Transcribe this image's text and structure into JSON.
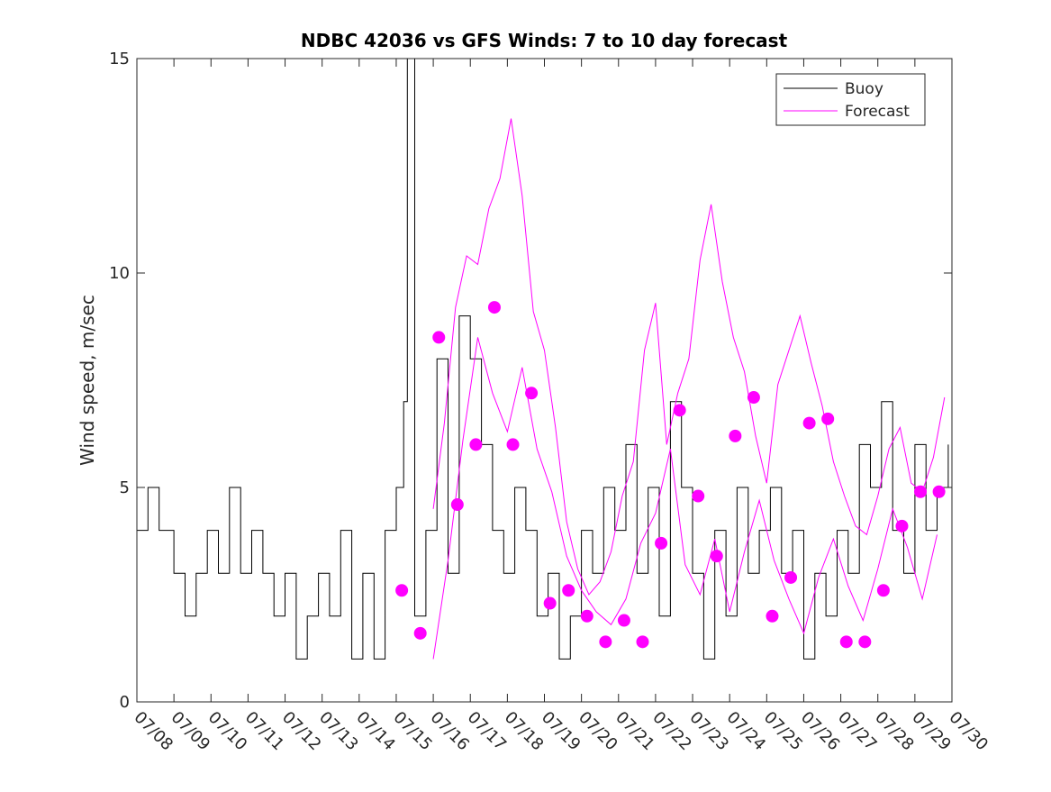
{
  "chart_data": {
    "type": "line",
    "title": "NDBC 42036 vs GFS Winds: 7 to 10 day forecast",
    "xlabel": "",
    "ylabel": "Wind speed, m/sec",
    "x_ticks": [
      "07/08",
      "07/09",
      "07/10",
      "07/11",
      "07/12",
      "07/13",
      "07/14",
      "07/15",
      "07/16",
      "07/17",
      "07/18",
      "07/19",
      "07/20",
      "07/21",
      "07/22",
      "07/23",
      "07/24",
      "07/25",
      "07/26",
      "07/27",
      "07/28",
      "07/29",
      "07/30"
    ],
    "xlim_days": [
      0,
      22
    ],
    "y_ticks": [
      0,
      5,
      10,
      15
    ],
    "ylim": [
      0,
      15
    ],
    "legend_position": "top-right",
    "colors": {
      "buoy": "#000000",
      "forecast": "#ff00ff"
    },
    "series": [
      {
        "name": "Buoy",
        "style": "line",
        "x": [
          0,
          0.3,
          0.6,
          1.0,
          1.3,
          1.6,
          1.9,
          2.2,
          2.5,
          2.8,
          3.1,
          3.4,
          3.7,
          4.0,
          4.3,
          4.6,
          4.9,
          5.2,
          5.5,
          5.8,
          6.1,
          6.4,
          6.7,
          7.0,
          7.2,
          7.3,
          7.5,
          7.8,
          8.1,
          8.4,
          8.7,
          9.0,
          9.3,
          9.6,
          9.9,
          10.2,
          10.5,
          10.8,
          11.1,
          11.4,
          11.7,
          12.0,
          12.3,
          12.6,
          12.9,
          13.2,
          13.5,
          13.8,
          14.1,
          14.4,
          14.7,
          15.0,
          15.3,
          15.6,
          15.9,
          16.2,
          16.5,
          16.8,
          17.1,
          17.4,
          17.7,
          18.0,
          18.3,
          18.6,
          18.9,
          19.2,
          19.5,
          19.8,
          20.1,
          20.4,
          20.7,
          21.0,
          21.3,
          21.6,
          21.9
        ],
        "y": [
          4,
          5,
          4,
          3,
          2,
          3,
          4,
          3,
          5,
          3,
          4,
          3,
          2,
          3,
          1,
          2,
          3,
          2,
          4,
          1,
          3,
          1,
          4,
          5,
          7,
          15,
          2,
          4,
          8,
          3,
          9,
          8,
          6,
          4,
          3,
          5,
          4,
          2,
          3,
          1,
          2,
          4,
          3,
          5,
          4,
          6,
          3,
          5,
          2,
          7,
          5,
          3,
          1,
          4,
          2,
          5,
          3,
          4,
          5,
          3,
          4,
          1,
          3,
          2,
          4,
          3,
          6,
          5,
          7,
          4,
          3,
          6,
          4,
          5,
          6
        ]
      },
      {
        "name": "Forecast",
        "style": "line",
        "x": [
          8.0,
          8.3,
          8.6,
          8.9,
          9.2,
          9.5,
          9.8,
          10.1,
          10.4,
          10.7,
          11.0,
          11.3,
          11.6,
          11.9,
          12.2,
          12.5,
          12.8,
          13.1,
          13.4,
          13.7,
          14.0,
          14.3,
          14.6,
          14.9,
          15.2,
          15.5,
          15.8,
          16.1,
          16.4,
          16.7,
          17.0,
          17.3,
          17.6,
          17.9,
          18.2,
          18.5,
          18.8,
          19.1,
          19.4,
          19.7,
          20.0,
          20.3,
          20.6,
          20.9,
          21.2,
          21.5,
          21.8
        ],
        "y": [
          4.5,
          6.5,
          9.2,
          10.4,
          10.2,
          11.5,
          12.2,
          13.6,
          11.8,
          9.1,
          8.2,
          6.4,
          4.2,
          3.1,
          2.5,
          2.8,
          3.5,
          4.8,
          5.6,
          8.2,
          9.3,
          6.0,
          7.2,
          8.0,
          10.3,
          11.6,
          9.8,
          8.5,
          7.7,
          6.2,
          5.1,
          7.4,
          8.2,
          9.0,
          7.9,
          6.9,
          5.6,
          4.8,
          4.1,
          3.9,
          4.8,
          5.9,
          6.4,
          5.1,
          4.9,
          5.7,
          7.1
        ]
      },
      {
        "name": "Forecast",
        "style": "line",
        "x": [
          8.0,
          8.4,
          8.8,
          9.2,
          9.6,
          10.0,
          10.4,
          10.8,
          11.2,
          11.6,
          12.0,
          12.4,
          12.8,
          13.2,
          13.6,
          14.0,
          14.4,
          14.8,
          15.2,
          15.6,
          16.0,
          16.4,
          16.8,
          17.2,
          17.6,
          18.0,
          18.4,
          18.8,
          19.2,
          19.6,
          20.0,
          20.4,
          20.8,
          21.2,
          21.6
        ],
        "y": [
          1.0,
          3.3,
          6.1,
          8.5,
          7.2,
          6.3,
          7.8,
          5.9,
          4.9,
          3.4,
          2.6,
          2.1,
          1.8,
          2.4,
          3.7,
          4.4,
          5.9,
          3.2,
          2.5,
          3.8,
          2.1,
          3.5,
          4.7,
          3.3,
          2.4,
          1.6,
          2.9,
          3.8,
          2.7,
          1.9,
          3.1,
          4.5,
          3.6,
          2.4,
          3.9
        ]
      },
      {
        "name": "Forecast",
        "style": "markers",
        "x": [
          7.15,
          7.65,
          8.15,
          8.65,
          9.15,
          9.65,
          10.15,
          10.65,
          11.15,
          11.65,
          12.15,
          12.65,
          13.15,
          13.65,
          14.15,
          14.65,
          15.15,
          15.65,
          16.15,
          16.65,
          17.15,
          17.65,
          18.15,
          18.65,
          19.15,
          19.65,
          20.15,
          20.65,
          21.15,
          21.65
        ],
        "y": [
          2.6,
          1.6,
          8.5,
          4.6,
          6.0,
          9.2,
          6.0,
          7.2,
          2.3,
          2.6,
          2.0,
          1.4,
          1.9,
          1.4,
          3.7,
          6.8,
          4.8,
          3.4,
          6.2,
          7.1,
          2.0,
          2.9,
          6.5,
          6.6,
          1.4,
          1.4,
          2.6,
          4.1,
          4.9,
          4.9
        ]
      }
    ]
  }
}
